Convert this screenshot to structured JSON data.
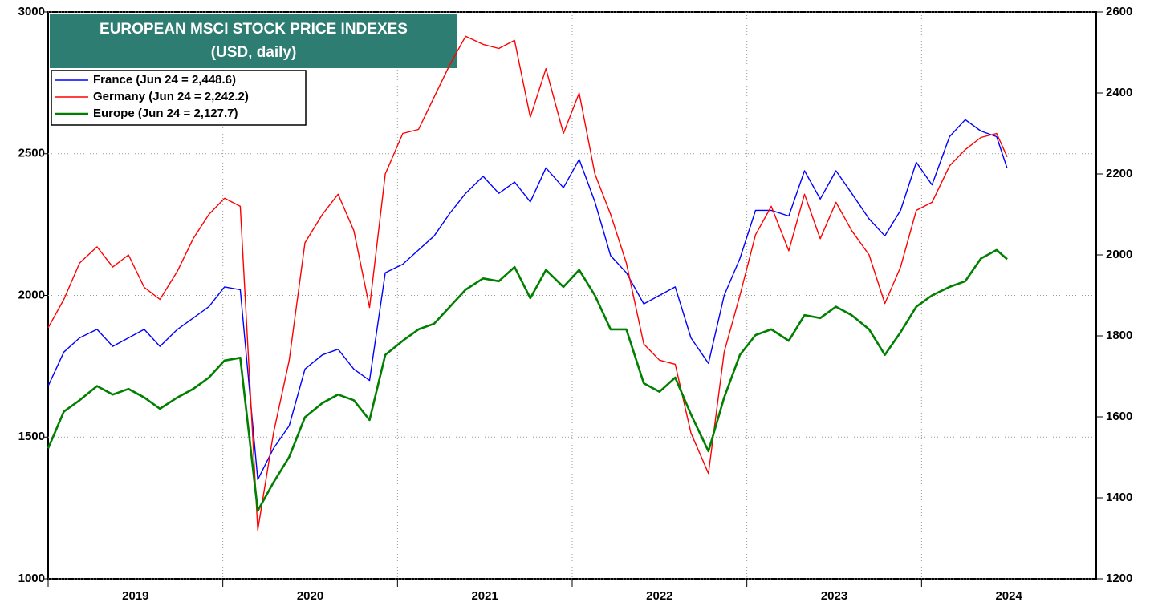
{
  "chart_data": {
    "type": "line",
    "title": "EUROPEAN MSCI STOCK PRICE INDEXES",
    "subtitle": "(USD, daily)",
    "legend": "upper left",
    "grid": true,
    "x": [
      2019.0,
      2019.09,
      2019.18,
      2019.28,
      2019.37,
      2019.46,
      2019.55,
      2019.64,
      2019.74,
      2019.83,
      2019.92,
      2020.01,
      2020.1,
      2020.2,
      2020.29,
      2020.38,
      2020.47,
      2020.57,
      2020.66,
      2020.75,
      2020.84,
      2020.93,
      2021.03,
      2021.12,
      2021.21,
      2021.3,
      2021.39,
      2021.49,
      2021.58,
      2021.67,
      2021.76,
      2021.85,
      2021.95,
      2022.04,
      2022.13,
      2022.22,
      2022.31,
      2022.41,
      2022.5,
      2022.59,
      2022.68,
      2022.78,
      2022.87,
      2022.96,
      2023.05,
      2023.14,
      2023.24,
      2023.33,
      2023.42,
      2023.51,
      2023.6,
      2023.7,
      2023.79,
      2023.88,
      2023.97,
      2024.06,
      2024.16,
      2024.25,
      2024.34,
      2024.43,
      2024.49
    ],
    "xlim": [
      2019,
      2025
    ],
    "xticks": [
      2019,
      2020,
      2021,
      2022,
      2023,
      2024
    ],
    "ylim": [
      1000,
      3000
    ],
    "yticks": [
      1000,
      1500,
      2000,
      2500,
      3000
    ],
    "y2lim": [
      1200,
      2600
    ],
    "y2ticks": [
      1200,
      1400,
      1600,
      1800,
      2000,
      2200,
      2400,
      2600
    ],
    "series": [
      {
        "name": "France (Jun 24 = 2,448.6)",
        "color": "#0000ff",
        "width": 1.4,
        "values": [
          1680,
          1800,
          1850,
          1880,
          1820,
          1850,
          1880,
          1820,
          1880,
          1920,
          1960,
          2030,
          2020,
          1350,
          1460,
          1540,
          1740,
          1790,
          1810,
          1740,
          1700,
          2080,
          2110,
          2160,
          2210,
          2290,
          2360,
          2420,
          2360,
          2400,
          2330,
          2450,
          2380,
          2480,
          2330,
          2140,
          2080,
          1970,
          2000,
          2030,
          1850,
          1760,
          2000,
          2130,
          2300,
          2300,
          2280,
          2440,
          2340,
          2440,
          2360,
          2270,
          2210,
          2300,
          2470,
          2390,
          2560,
          2620,
          2580,
          2560,
          2448.6
        ]
      },
      {
        "name": "Germany (Jun 24 = 2,242.2)",
        "color": "#ff0000",
        "width": 1.4,
        "axis": "y2",
        "values": [
          1820,
          1890,
          1980,
          2020,
          1970,
          2000,
          1920,
          1890,
          1960,
          2040,
          2100,
          2140,
          2120,
          1320,
          1560,
          1740,
          2030,
          2100,
          2150,
          2060,
          1870,
          2200,
          2300,
          2310,
          2390,
          2470,
          2540,
          2520,
          2510,
          2530,
          2340,
          2460,
          2300,
          2400,
          2200,
          2100,
          1980,
          1780,
          1740,
          1730,
          1560,
          1460,
          1760,
          1900,
          2050,
          2120,
          2010,
          2150,
          2040,
          2130,
          2060,
          2000,
          1880,
          1970,
          2110,
          2130,
          2220,
          2260,
          2290,
          2300,
          2242.2
        ]
      },
      {
        "name": "Europe (Jun 24 = 2,127.7)",
        "color": "#008000",
        "width": 2.6,
        "values": [
          1460,
          1590,
          1630,
          1680,
          1650,
          1670,
          1640,
          1600,
          1640,
          1670,
          1710,
          1770,
          1780,
          1240,
          1340,
          1430,
          1570,
          1620,
          1650,
          1630,
          1560,
          1790,
          1840,
          1880,
          1900,
          1960,
          2020,
          2060,
          2050,
          2100,
          1990,
          2090,
          2030,
          2090,
          2000,
          1880,
          1880,
          1690,
          1660,
          1710,
          1580,
          1450,
          1640,
          1790,
          1860,
          1880,
          1840,
          1930,
          1920,
          1960,
          1930,
          1880,
          1790,
          1870,
          1960,
          2000,
          2030,
          2050,
          2130,
          2160,
          2127.7
        ]
      }
    ]
  }
}
